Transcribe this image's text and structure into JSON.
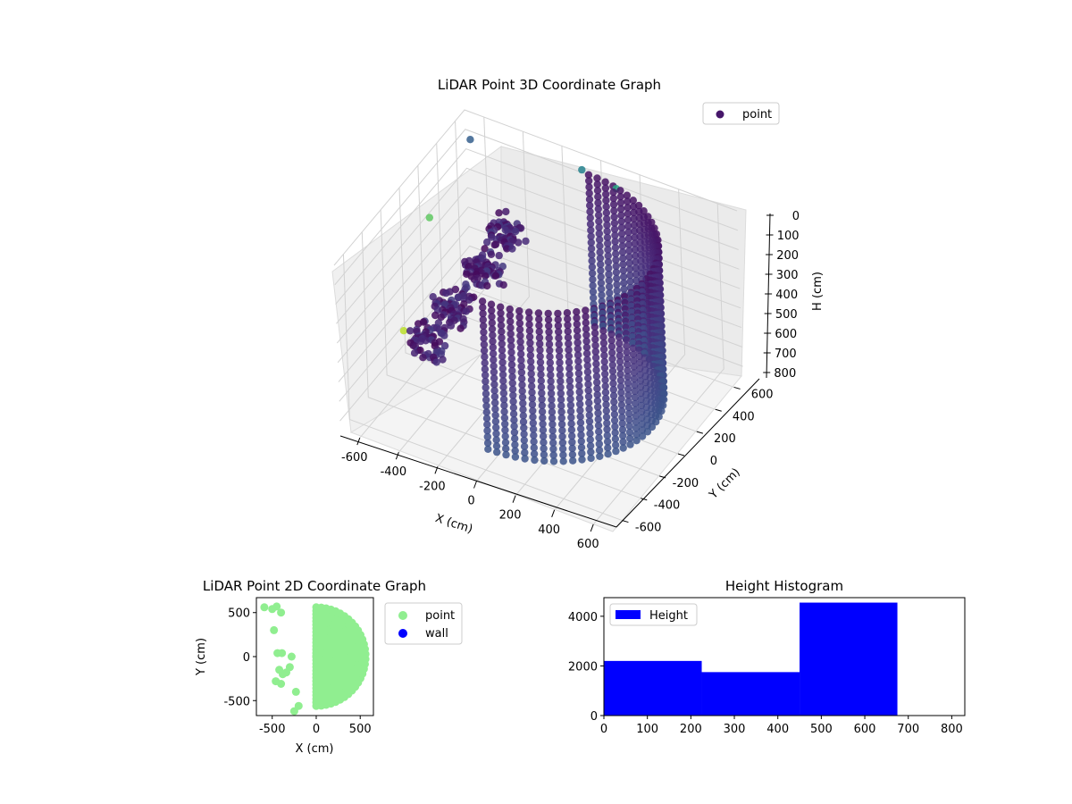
{
  "chart_data": [
    {
      "type": "scatter",
      "dimensions": 3,
      "title": "LiDAR Point 3D Coordinate Graph",
      "xlabel": "X (cm)",
      "ylabel": "Y (cm)",
      "zlabel": "H (cm)",
      "xlim": [
        -700,
        700
      ],
      "ylim": [
        -700,
        700
      ],
      "zlim": [
        0,
        850
      ],
      "z_inverted": true,
      "x_ticks": [
        "-600",
        "-400",
        "-200",
        "0",
        "200",
        "400",
        "600"
      ],
      "y_ticks": [
        "600",
        "400",
        "200",
        "0",
        "-200",
        "-400",
        "-600"
      ],
      "z_ticks": [
        "0",
        "100",
        "200",
        "300",
        "400",
        "500",
        "600",
        "700",
        "800"
      ],
      "colormap": "viridis",
      "legend": {
        "placement": "top-right",
        "entries": [
          {
            "label": "point",
            "color": "#46166a"
          }
        ]
      },
      "series": [
        {
          "name": "point",
          "shape": "half-cylinder wall",
          "radius_cm": 570,
          "angle_range_deg": [
            -90,
            90
          ],
          "height_range_cm": [
            0,
            760
          ],
          "dense_cluster": [
            {
              "x": -200,
              "y": 100,
              "h": 120
            },
            {
              "x": -300,
              "y": 50,
              "h": 320
            },
            {
              "x": -450,
              "y": 0,
              "h": 520
            },
            {
              "x": -520,
              "y": -120,
              "h": 650
            }
          ],
          "outliers": [
            {
              "x": -600,
              "y": 550,
              "h": 30
            },
            {
              "x": -50,
              "y": 600,
              "h": 10
            },
            {
              "x": 100,
              "y": 650,
              "h": 80
            },
            {
              "x": -650,
              "y": 200,
              "h": 250
            },
            {
              "x": -680,
              "y": -50,
              "h": 700
            }
          ]
        }
      ]
    },
    {
      "type": "scatter",
      "title": "LiDAR Point 2D Coordinate Graph",
      "xlabel": "X (cm)",
      "ylabel": "Y (cm)",
      "xlim": [
        -680,
        650
      ],
      "ylim": [
        -670,
        670
      ],
      "x_ticks": [
        "-500",
        "0",
        "500"
      ],
      "y_ticks": [
        "500",
        "0",
        "-500"
      ],
      "legend": {
        "placement": "outside-right",
        "entries": [
          {
            "label": "point",
            "color": "#90ee90"
          },
          {
            "label": "wall",
            "color": "#0000ff"
          }
        ]
      },
      "series": [
        {
          "name": "point",
          "color": "#90ee90",
          "shape": "half-disc",
          "radius_cm": 570,
          "extra_points": [
            {
              "x": -590,
              "y": 560
            },
            {
              "x": -500,
              "y": 540
            },
            {
              "x": -450,
              "y": 570
            },
            {
              "x": -400,
              "y": 500
            },
            {
              "x": -480,
              "y": 300
            },
            {
              "x": -440,
              "y": 40
            },
            {
              "x": -390,
              "y": 40
            },
            {
              "x": -420,
              "y": -150
            },
            {
              "x": -380,
              "y": -200
            },
            {
              "x": -460,
              "y": -280
            },
            {
              "x": -400,
              "y": -310
            },
            {
              "x": -340,
              "y": -180
            },
            {
              "x": -300,
              "y": -120
            },
            {
              "x": -250,
              "y": -620
            },
            {
              "x": -200,
              "y": -560
            },
            {
              "x": -280,
              "y": 0
            },
            {
              "x": -230,
              "y": -400
            }
          ]
        },
        {
          "name": "wall",
          "color": "#0000ff",
          "values": []
        }
      ]
    },
    {
      "type": "bar",
      "title": "Height Histogram",
      "xlim": [
        0,
        830
      ],
      "ylim": [
        0,
        4750
      ],
      "x_ticks": [
        "0",
        "100",
        "200",
        "300",
        "400",
        "500",
        "600",
        "700",
        "800"
      ],
      "y_ticks": [
        "0",
        "2000",
        "4000"
      ],
      "legend": {
        "placement": "top-left",
        "entries": [
          {
            "label": "Height",
            "color": "#0000ff"
          }
        ]
      },
      "series": [
        {
          "name": "Height",
          "color": "#0000ff",
          "bins": [
            {
              "from": 0,
              "to": 225,
              "count": 2200
            },
            {
              "from": 225,
              "to": 450,
              "count": 1750
            },
            {
              "from": 450,
              "to": 675,
              "count": 4550
            }
          ]
        }
      ]
    }
  ]
}
